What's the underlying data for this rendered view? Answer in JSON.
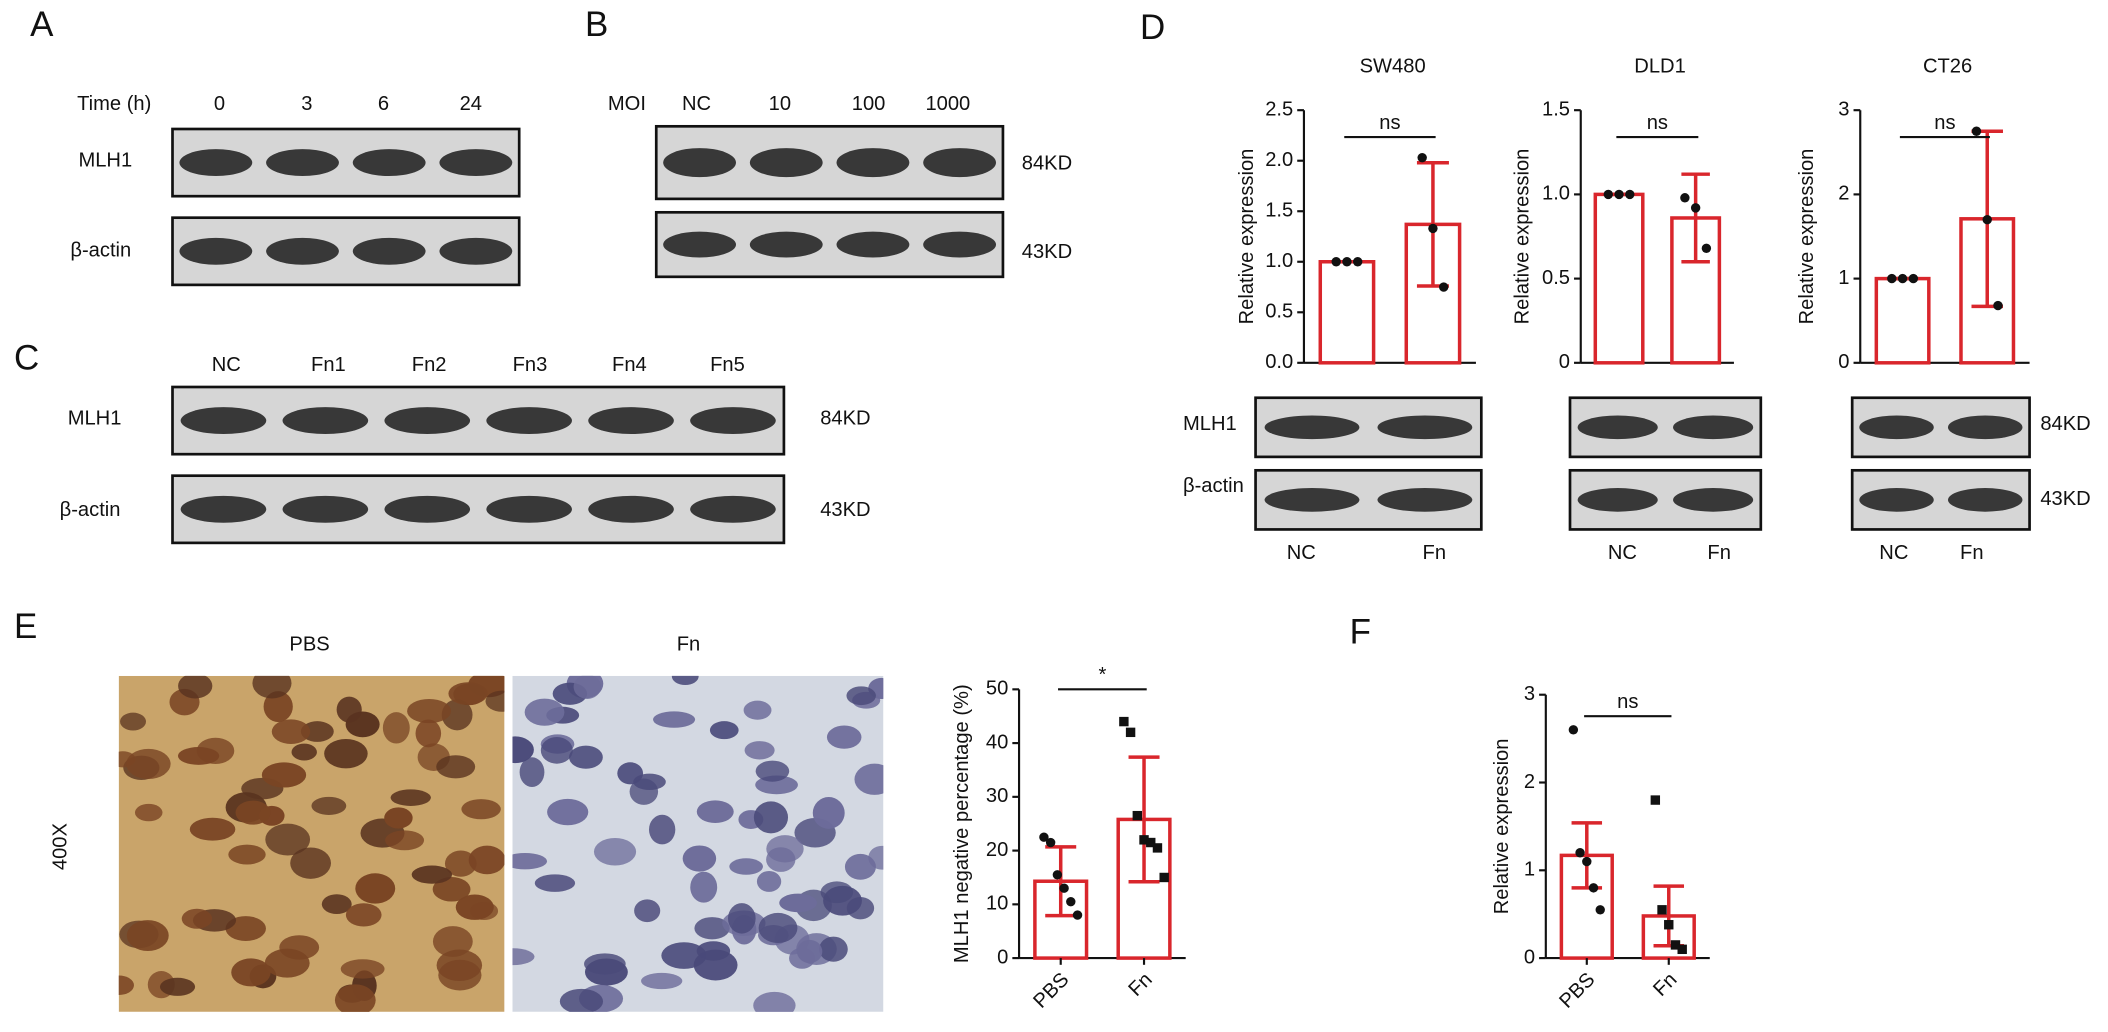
{
  "panel_labels": [
    "A",
    "B",
    "C",
    "D",
    "E",
    "F"
  ],
  "blot_A": {
    "header": "Time (h)",
    "lanes": [
      "0",
      "3",
      "6",
      "24"
    ],
    "rows": [
      "MLH1",
      "β-actin"
    ]
  },
  "blot_B": {
    "header": "MOI",
    "lanes": [
      "NC",
      "10",
      "100",
      "1000"
    ],
    "sizes": [
      "84KD",
      "43KD"
    ]
  },
  "blot_C": {
    "lanes": [
      "NC",
      "Fn1",
      "Fn2",
      "Fn3",
      "Fn4",
      "Fn5"
    ],
    "rows": [
      "MLH1",
      "β-actin"
    ],
    "sizes": [
      "84KD",
      "43KD"
    ]
  },
  "blot_D": {
    "rows": [
      "MLH1",
      "β-actin"
    ],
    "sizes": [
      "84KD",
      "43KD"
    ]
  },
  "ihc_E": {
    "images": [
      "PBS",
      "Fn"
    ],
    "magnification": "400X"
  },
  "chart_data": [
    {
      "type": "bar",
      "title": "SW480",
      "y_label": "Relative expression",
      "categories": [
        "NC",
        "Fn"
      ],
      "values": [
        1.0,
        1.37
      ],
      "errors": [
        0,
        0.61
      ],
      "points": [
        [
          1,
          1,
          1
        ],
        [
          2.03,
          1.33,
          0.75
        ]
      ],
      "markers": [
        "circle",
        "circle"
      ],
      "annotation": "ns",
      "color": "#d9262c",
      "ylim": [
        0,
        2.5
      ],
      "yticks": [
        {
          "value": 0,
          "label": "0.0"
        },
        0.5,
        {
          "value": 1,
          "label": "1.0"
        },
        1.5,
        {
          "value": 2,
          "label": "2.0"
        },
        2.5
      ]
    },
    {
      "type": "bar",
      "title": "DLD1",
      "y_label": "Relative expression",
      "categories": [
        "NC",
        "Fn"
      ],
      "values": [
        1.0,
        0.86
      ],
      "errors": [
        0,
        0.26
      ],
      "points": [
        [
          1,
          1,
          1
        ],
        [
          0.98,
          0.92,
          0.68
        ]
      ],
      "markers": [
        "circle",
        "circle"
      ],
      "annotation": "ns",
      "color": "#d9262c",
      "ylim": [
        0,
        1.5
      ],
      "yticks": [
        0,
        0.5,
        {
          "value": 1,
          "label": "1.0"
        },
        1.5
      ]
    },
    {
      "type": "bar",
      "title": "CT26",
      "y_label": "Relative expression",
      "categories": [
        "NC",
        "Fn"
      ],
      "values": [
        1.0,
        1.71
      ],
      "errors": [
        0,
        1.04
      ],
      "points": [
        [
          1,
          1,
          1
        ],
        [
          2.75,
          1.7,
          0.68
        ]
      ],
      "markers": [
        "circle",
        "circle"
      ],
      "annotation": "ns",
      "color": "#d9262c",
      "ylim": [
        0,
        3
      ],
      "yticks": [
        0,
        1,
        2,
        3
      ]
    },
    {
      "type": "bar",
      "y_label": "MLH1 negative percentage (%)",
      "categories": [
        "PBS",
        "Fn"
      ],
      "values": [
        14.3,
        25.8
      ],
      "errors": [
        6.4,
        11.6
      ],
      "points": [
        [
          22.5,
          21.5,
          15.5,
          13,
          10.5,
          8
        ],
        [
          44,
          42,
          26.5,
          22,
          21.5,
          20.5,
          15
        ]
      ],
      "markers": [
        "circle",
        "square"
      ],
      "annotation": "*",
      "color": "#d9262c",
      "ylim": [
        0,
        50
      ],
      "yticks": [
        0,
        10,
        20,
        30,
        40,
        50
      ]
    },
    {
      "type": "bar",
      "y_label": "Relative expression",
      "categories": [
        "PBS",
        "Fn"
      ],
      "values": [
        1.17,
        0.48
      ],
      "errors": [
        0.37,
        0.34
      ],
      "points": [
        [
          2.6,
          1.2,
          1.1,
          0.8,
          0.55
        ],
        [
          1.8,
          0.55,
          0.38,
          0.15,
          0.1
        ]
      ],
      "markers": [
        "circle",
        "square"
      ],
      "annotation": "ns",
      "color": "#d9262c",
      "ylim": [
        0,
        3
      ],
      "yticks": [
        0,
        1,
        2,
        3
      ]
    }
  ]
}
